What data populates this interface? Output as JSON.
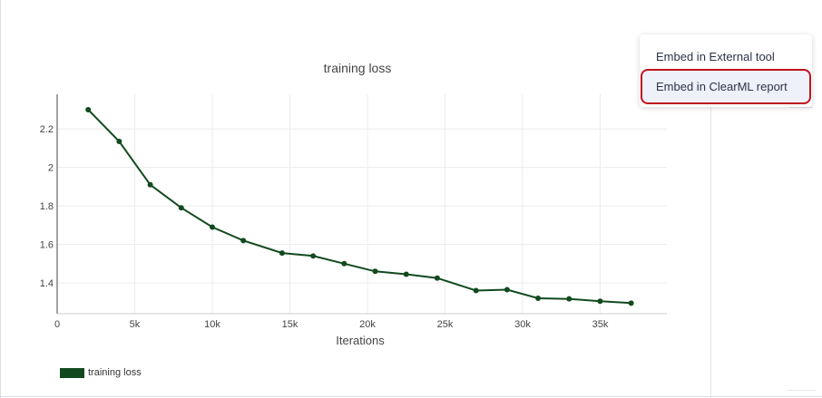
{
  "menu": {
    "items": [
      {
        "label": "Embed in External tool"
      },
      {
        "label": "Embed in ClearML report"
      }
    ]
  },
  "colors": {
    "series": "#124a1f",
    "highlight_border": "#c0141f"
  },
  "chart_data": {
    "type": "line",
    "title": "training loss",
    "xlabel": "Iterations",
    "ylabel": "",
    "xlim": [
      0,
      39300
    ],
    "ylim": [
      1.24,
      2.38
    ],
    "xticks": [
      0,
      5000,
      10000,
      15000,
      20000,
      25000,
      30000,
      35000
    ],
    "xtick_labels": [
      "0",
      "5k",
      "10k",
      "15k",
      "20k",
      "25k",
      "30k",
      "35k"
    ],
    "yticks": [
      1.4,
      1.6,
      1.8,
      2,
      2.2
    ],
    "ytick_labels": [
      "1.4",
      "1.6",
      "1.8",
      "2",
      "2.2"
    ],
    "grid": true,
    "legend_position": "bottom-left",
    "series": [
      {
        "name": "training loss",
        "x": [
          2000,
          4000,
          6000,
          8000,
          10000,
          12000,
          14500,
          16500,
          18500,
          20500,
          22500,
          24500,
          27000,
          29000,
          31000,
          33000,
          35000,
          37000
        ],
        "y": [
          2.3,
          2.135,
          1.91,
          1.79,
          1.69,
          1.62,
          1.555,
          1.54,
          1.5,
          1.46,
          1.445,
          1.425,
          1.36,
          1.365,
          1.32,
          1.317,
          1.305,
          1.295
        ]
      }
    ]
  }
}
